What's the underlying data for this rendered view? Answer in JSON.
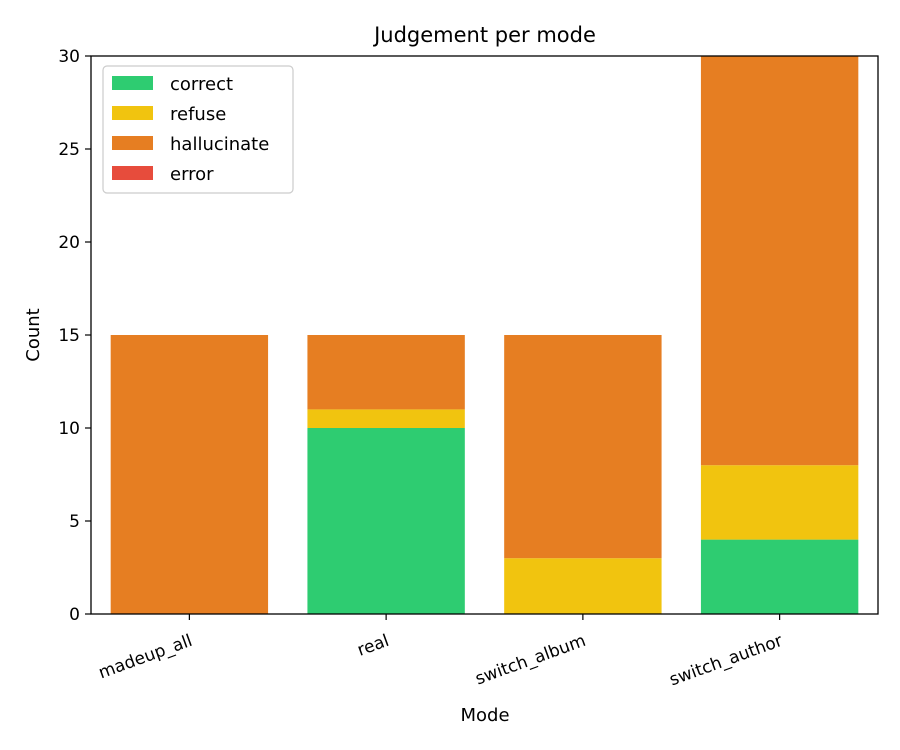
{
  "chart_data": {
    "type": "bar",
    "stacked": true,
    "title": "Judgement per mode",
    "xlabel": "Mode",
    "ylabel": "Count",
    "ylim": [
      0,
      30
    ],
    "yticks": [
      "0",
      "5",
      "10",
      "15",
      "20",
      "25",
      "30"
    ],
    "categories": [
      "madeup_all",
      "real",
      "switch_album",
      "switch_author"
    ],
    "series": [
      {
        "name": "correct",
        "color": "#2ecc71",
        "values": [
          0,
          10,
          0,
          4
        ]
      },
      {
        "name": "refuse",
        "color": "#f1c40f",
        "values": [
          0,
          1,
          3,
          4
        ]
      },
      {
        "name": "hallucinate",
        "color": "#e67e22",
        "values": [
          15,
          4,
          12,
          22
        ]
      },
      {
        "name": "error",
        "color": "#e74c3c",
        "values": [
          0,
          0,
          0,
          0
        ]
      }
    ],
    "legend_position": "upper-left",
    "grid": false
  }
}
